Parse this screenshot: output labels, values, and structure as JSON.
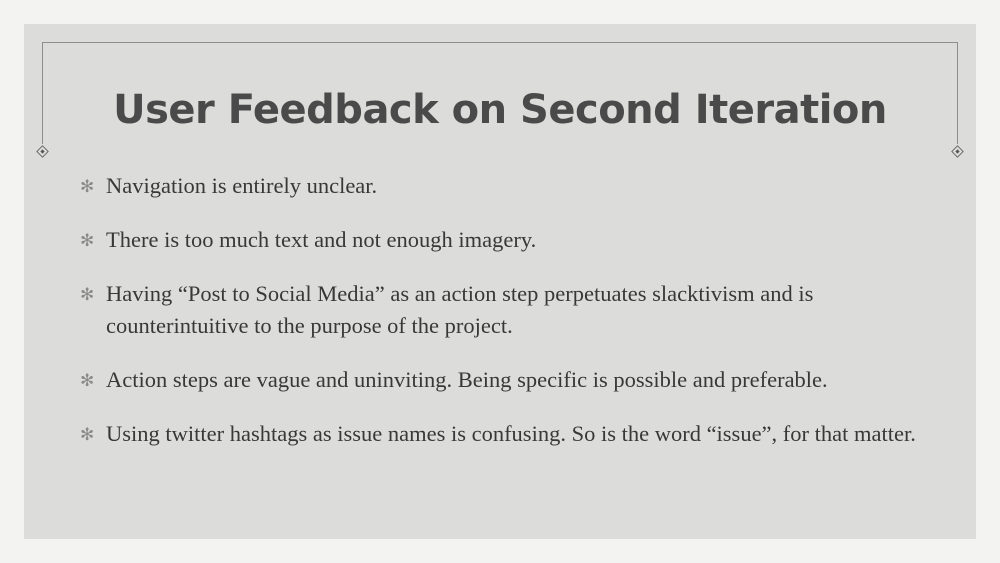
{
  "slide": {
    "title": "User Feedback on Second Iteration",
    "bullet_icon": "asterisk-icon",
    "bullet_glyph": "✻",
    "bullets": [
      "Navigation is entirely unclear.",
      "There is too much text and not enough imagery.",
      "Having “Post to Social Media” as an action step perpetuates slacktivism and is counterintuitive to the purpose of the project.",
      "Action steps are vague and uninviting. Being specific is possible and preferable.",
      "Using twitter hashtags as issue names is confusing. So is the word “issue”, for that matter."
    ]
  }
}
